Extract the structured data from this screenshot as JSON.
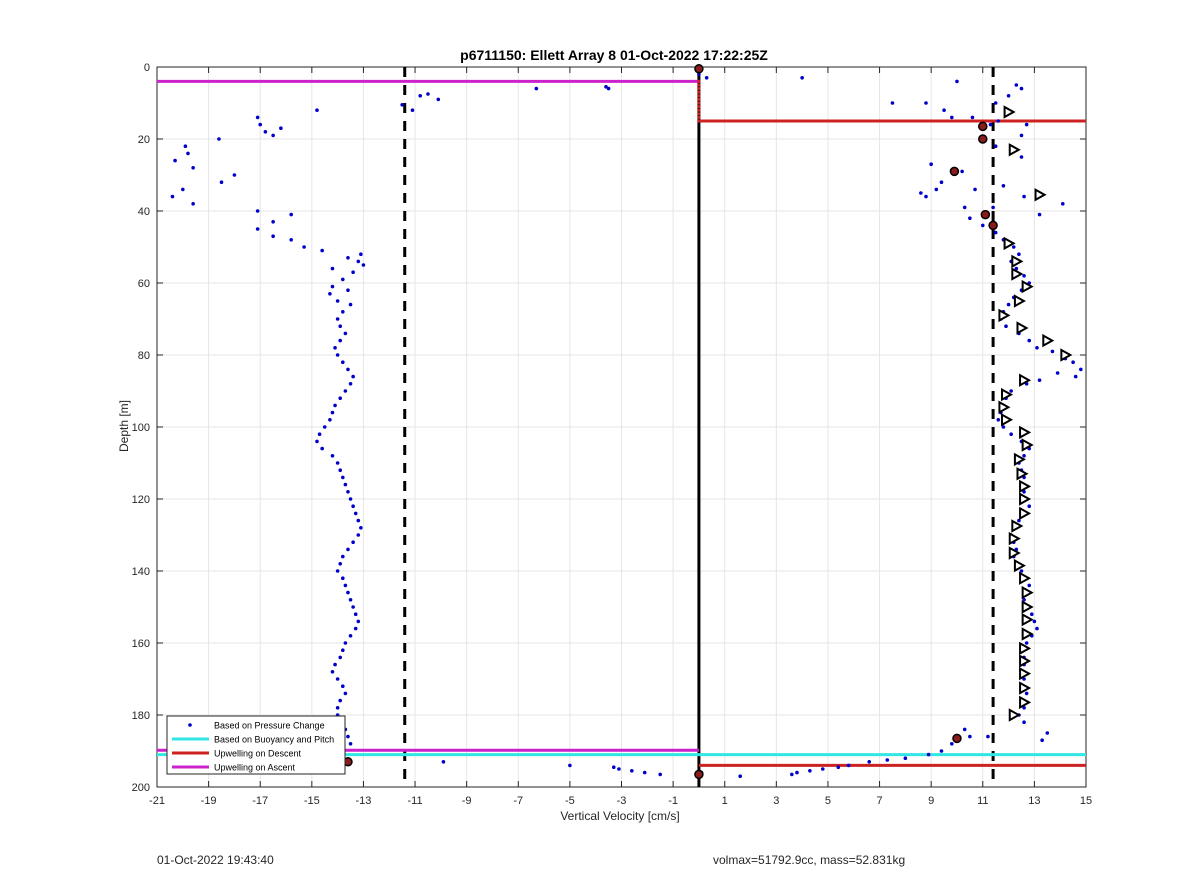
{
  "chart_data": {
    "type": "scatter",
    "title": "p6711150: Ellett Array 8 01-Oct-2022 17:22:25Z",
    "xlabel": "Vertical Velocity [cm/s]",
    "ylabel": "Depth [m]",
    "xlim": [
      -21,
      15
    ],
    "ylim": [
      0,
      200
    ],
    "y_reversed": true,
    "grid": true,
    "legend_position": "bottom-left",
    "xticks": [
      "-21",
      "-19",
      "-17",
      "-15",
      "-13",
      "-11",
      "-9",
      "-7",
      "-5",
      "-3",
      "-1",
      "1",
      "3",
      "5",
      "7",
      "9",
      "11",
      "13",
      "15"
    ],
    "yticks": [
      "0",
      "20",
      "40",
      "60",
      "80",
      "100",
      "120",
      "140",
      "160",
      "180",
      "200"
    ],
    "legend": [
      {
        "label": "Based on Pressure Change",
        "color": "#0000cc",
        "style": "dot"
      },
      {
        "label": "Based on Buoyancy and Pitch",
        "color": "#33e6e6",
        "style": "line"
      },
      {
        "label": "Upwelling on Descent",
        "color": "#cc2222",
        "style": "line"
      },
      {
        "label": "Upwelling on Ascent",
        "color": "#cc22cc",
        "style": "line"
      }
    ],
    "reference_lines": {
      "solid_black_x": 0,
      "dashed_black_x": [
        -11.4,
        11.4
      ]
    },
    "upwelling_descent": [
      {
        "y": 15,
        "x_from": 0,
        "x_to": 15
      },
      {
        "y": 194,
        "x_from": 0,
        "x_to": 15
      }
    ],
    "upwelling_ascent": [
      {
        "y": 4,
        "x_from": -21,
        "x_to": 0
      },
      {
        "y": 189.8,
        "x_from": -21,
        "x_to": 0
      }
    ],
    "buoyancy_line": {
      "y": 191,
      "x_from": -21,
      "x_to": 15
    },
    "series": [
      {
        "name": "Based on Pressure Change",
        "points": [
          [
            -20.4,
            36
          ],
          [
            -20.3,
            26
          ],
          [
            -20.0,
            34
          ],
          [
            -19.9,
            22
          ],
          [
            -19.8,
            24
          ],
          [
            -19.6,
            28
          ],
          [
            -19.6,
            38
          ],
          [
            -18.6,
            20
          ],
          [
            -18.5,
            32
          ],
          [
            -18.0,
            30
          ],
          [
            -17.1,
            14
          ],
          [
            -17.0,
            16
          ],
          [
            -16.8,
            18
          ],
          [
            -16.5,
            19
          ],
          [
            -16.2,
            17
          ],
          [
            -17.1,
            40
          ],
          [
            -17.1,
            45
          ],
          [
            -16.5,
            43
          ],
          [
            -16.5,
            47
          ],
          [
            -15.8,
            41
          ],
          [
            -15.8,
            48
          ],
          [
            -15.3,
            50
          ],
          [
            -14.8,
            12
          ],
          [
            -14.6,
            51
          ],
          [
            -14.2,
            56
          ],
          [
            -13.6,
            53
          ],
          [
            -13.2,
            54
          ],
          [
            -13.1,
            52
          ],
          [
            -13.0,
            55
          ],
          [
            -13.4,
            57
          ],
          [
            -13.8,
            59
          ],
          [
            -14.2,
            61
          ],
          [
            -14.3,
            63
          ],
          [
            -14.0,
            65
          ],
          [
            -13.6,
            62
          ],
          [
            -13.5,
            66
          ],
          [
            -13.8,
            68
          ],
          [
            -14.0,
            70
          ],
          [
            -13.9,
            72
          ],
          [
            -13.7,
            74
          ],
          [
            -13.9,
            76
          ],
          [
            -14.1,
            78
          ],
          [
            -14.0,
            80
          ],
          [
            -13.8,
            82
          ],
          [
            -13.6,
            84
          ],
          [
            -13.4,
            86
          ],
          [
            -13.5,
            88
          ],
          [
            -13.7,
            90
          ],
          [
            -13.9,
            92
          ],
          [
            -14.1,
            94
          ],
          [
            -14.2,
            96
          ],
          [
            -14.3,
            98
          ],
          [
            -14.5,
            100
          ],
          [
            -14.7,
            102
          ],
          [
            -14.8,
            104
          ],
          [
            -14.6,
            106
          ],
          [
            -14.2,
            108
          ],
          [
            -14.0,
            110
          ],
          [
            -13.9,
            112
          ],
          [
            -13.8,
            114
          ],
          [
            -13.7,
            116
          ],
          [
            -13.6,
            118
          ],
          [
            -13.5,
            120
          ],
          [
            -13.4,
            122
          ],
          [
            -13.3,
            124
          ],
          [
            -13.2,
            126
          ],
          [
            -13.1,
            128
          ],
          [
            -13.2,
            130
          ],
          [
            -13.4,
            132
          ],
          [
            -13.6,
            134
          ],
          [
            -13.8,
            136
          ],
          [
            -13.9,
            138
          ],
          [
            -14.0,
            140
          ],
          [
            -13.8,
            142
          ],
          [
            -13.7,
            144
          ],
          [
            -13.6,
            146
          ],
          [
            -13.5,
            148
          ],
          [
            -13.4,
            150
          ],
          [
            -13.3,
            152
          ],
          [
            -13.2,
            154
          ],
          [
            -13.3,
            156
          ],
          [
            -13.5,
            158
          ],
          [
            -13.7,
            160
          ],
          [
            -13.8,
            162
          ],
          [
            -13.9,
            164
          ],
          [
            -14.1,
            166
          ],
          [
            -14.2,
            168
          ],
          [
            -14.0,
            170
          ],
          [
            -13.8,
            172
          ],
          [
            -13.7,
            174
          ],
          [
            -13.9,
            176
          ],
          [
            -14.0,
            178
          ],
          [
            -14.0,
            180
          ],
          [
            -13.8,
            182
          ],
          [
            -13.7,
            184
          ],
          [
            -13.6,
            186
          ],
          [
            -13.5,
            188
          ],
          [
            -11.5,
            10.5
          ],
          [
            -11.1,
            12
          ],
          [
            -10.8,
            8
          ],
          [
            -10.5,
            7.5
          ],
          [
            -10.1,
            9
          ],
          [
            -6.3,
            6
          ],
          [
            -3.6,
            5.5
          ],
          [
            -3.5,
            6
          ],
          [
            -9.9,
            193
          ],
          [
            -5.0,
            194
          ],
          [
            -3.3,
            194.5
          ],
          [
            -3.1,
            195
          ],
          [
            -2.6,
            195.5
          ],
          [
            -2.1,
            196
          ],
          [
            -1.5,
            196.5
          ],
          [
            4.0,
            3
          ],
          [
            10.0,
            4
          ],
          [
            11.5,
            10
          ],
          [
            12.0,
            8
          ],
          [
            12.3,
            5
          ],
          [
            12.5,
            6
          ],
          [
            7.5,
            10
          ],
          [
            8.8,
            10
          ],
          [
            9.5,
            12
          ],
          [
            9.8,
            14
          ],
          [
            10.6,
            14
          ],
          [
            11.3,
            16
          ],
          [
            11.6,
            15
          ],
          [
            12.7,
            16
          ],
          [
            12.5,
            19
          ],
          [
            11.5,
            22
          ],
          [
            12.5,
            25
          ],
          [
            9.0,
            27
          ],
          [
            10.2,
            29
          ],
          [
            9.4,
            32
          ],
          [
            9.2,
            34
          ],
          [
            8.6,
            35
          ],
          [
            8.8,
            36
          ],
          [
            10.7,
            34
          ],
          [
            11.8,
            33
          ],
          [
            12.6,
            36
          ],
          [
            14.1,
            38
          ],
          [
            11.4,
            39
          ],
          [
            13.2,
            41
          ],
          [
            10.3,
            39
          ],
          [
            10.5,
            42
          ],
          [
            11.0,
            44
          ],
          [
            11.5,
            46
          ],
          [
            11.8,
            48
          ],
          [
            12.2,
            50
          ],
          [
            12.4,
            52
          ],
          [
            12.1,
            54
          ],
          [
            12.3,
            56
          ],
          [
            12.6,
            58
          ],
          [
            12.8,
            60
          ],
          [
            12.5,
            62
          ],
          [
            12.2,
            64
          ],
          [
            12.0,
            66
          ],
          [
            11.8,
            68
          ],
          [
            11.7,
            70
          ],
          [
            11.9,
            72
          ],
          [
            12.4,
            74
          ],
          [
            12.8,
            76
          ],
          [
            13.1,
            78
          ],
          [
            13.7,
            79
          ],
          [
            14.2,
            81
          ],
          [
            14.5,
            82
          ],
          [
            14.8,
            84
          ],
          [
            14.6,
            86
          ],
          [
            13.9,
            85
          ],
          [
            13.2,
            87
          ],
          [
            12.7,
            88
          ],
          [
            12.1,
            90
          ],
          [
            11.9,
            92
          ],
          [
            11.8,
            94
          ],
          [
            11.7,
            96
          ],
          [
            11.6,
            98
          ],
          [
            11.8,
            100
          ],
          [
            12.1,
            102
          ],
          [
            12.5,
            104
          ],
          [
            12.8,
            106
          ],
          [
            12.6,
            108
          ],
          [
            12.4,
            110
          ],
          [
            12.5,
            112
          ],
          [
            12.6,
            114
          ],
          [
            12.5,
            116
          ],
          [
            12.6,
            118
          ],
          [
            12.7,
            120
          ],
          [
            12.8,
            122
          ],
          [
            12.6,
            124
          ],
          [
            12.4,
            126
          ],
          [
            12.2,
            128
          ],
          [
            12.1,
            130
          ],
          [
            12.2,
            132
          ],
          [
            12.3,
            134
          ],
          [
            12.2,
            136
          ],
          [
            12.3,
            138
          ],
          [
            12.5,
            140
          ],
          [
            12.7,
            142
          ],
          [
            12.8,
            144
          ],
          [
            12.7,
            146
          ],
          [
            12.6,
            148
          ],
          [
            12.7,
            150
          ],
          [
            12.9,
            152
          ],
          [
            13.0,
            154
          ],
          [
            13.1,
            156
          ],
          [
            12.9,
            158
          ],
          [
            12.7,
            160
          ],
          [
            12.5,
            162
          ],
          [
            12.6,
            164
          ],
          [
            12.6,
            166
          ],
          [
            12.5,
            168
          ],
          [
            12.6,
            170
          ],
          [
            12.5,
            172
          ],
          [
            12.7,
            174
          ],
          [
            12.5,
            176
          ],
          [
            12.6,
            178
          ],
          [
            12.4,
            180
          ],
          [
            12.6,
            182
          ],
          [
            10.3,
            184
          ],
          [
            10.0,
            186
          ],
          [
            10.5,
            186
          ],
          [
            9.8,
            188
          ],
          [
            9.4,
            190
          ],
          [
            8.9,
            191
          ],
          [
            11.2,
            186
          ],
          [
            13.5,
            185
          ],
          [
            13.3,
            187
          ],
          [
            8.0,
            192
          ],
          [
            7.3,
            192.5
          ],
          [
            6.6,
            193
          ],
          [
            5.8,
            194
          ],
          [
            5.4,
            194.5
          ],
          [
            4.8,
            195
          ],
          [
            4.3,
            195.5
          ],
          [
            3.8,
            196
          ],
          [
            3.6,
            196.5
          ],
          [
            1.6,
            197
          ],
          [
            0.0,
            2
          ],
          [
            0.3,
            3
          ],
          [
            0.1,
            196
          ],
          [
            0.05,
            196.5
          ]
        ]
      },
      {
        "name": "",
        "marker": "triangle-right",
        "points": [
          [
            12.0,
            12.5
          ],
          [
            12.2,
            23
          ],
          [
            13.2,
            35.5
          ],
          [
            12.0,
            49
          ],
          [
            12.3,
            54
          ],
          [
            12.3,
            57.5
          ],
          [
            12.7,
            61
          ],
          [
            12.4,
            65
          ],
          [
            11.8,
            69
          ],
          [
            12.5,
            72.5
          ],
          [
            13.5,
            76
          ],
          [
            14.2,
            80
          ],
          [
            12.6,
            87
          ],
          [
            11.9,
            91
          ],
          [
            11.8,
            94.5
          ],
          [
            11.9,
            98
          ],
          [
            12.6,
            101.5
          ],
          [
            12.7,
            105
          ],
          [
            12.4,
            109
          ],
          [
            12.5,
            113
          ],
          [
            12.6,
            116.5
          ],
          [
            12.6,
            120
          ],
          [
            12.6,
            124
          ],
          [
            12.3,
            127.5
          ],
          [
            12.2,
            131
          ],
          [
            12.2,
            135
          ],
          [
            12.4,
            138.5
          ],
          [
            12.6,
            142
          ],
          [
            12.7,
            146
          ],
          [
            12.7,
            150
          ],
          [
            12.7,
            153.5
          ],
          [
            12.7,
            157.5
          ],
          [
            12.6,
            161.5
          ],
          [
            12.6,
            165
          ],
          [
            12.6,
            168.5
          ],
          [
            12.6,
            172.5
          ],
          [
            12.6,
            176.5
          ],
          [
            12.2,
            180
          ]
        ]
      },
      {
        "name": "",
        "marker": "dark-dot",
        "points": [
          [
            0.0,
            0.5
          ],
          [
            0.0,
            196.5
          ],
          [
            11.0,
            16.5
          ],
          [
            11.0,
            20
          ],
          [
            9.9,
            29
          ],
          [
            11.1,
            41
          ],
          [
            11.4,
            44
          ],
          [
            10.0,
            186.5
          ],
          [
            -13.6,
            193
          ]
        ]
      }
    ]
  },
  "footer": {
    "timestamp": "01-Oct-2022 19:43:40",
    "volmax_mass": "volmax=51792.9cc, mass=52.831kg"
  }
}
